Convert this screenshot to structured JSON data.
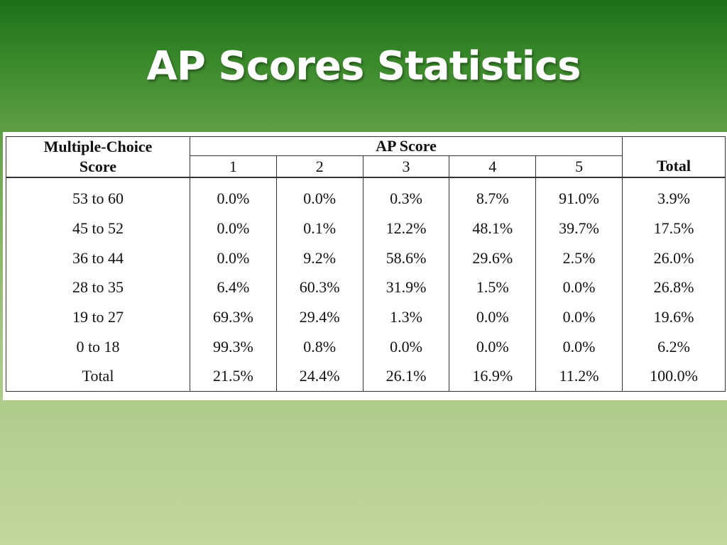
{
  "slide": {
    "title": "AP Scores Statistics"
  },
  "table": {
    "header": {
      "mc_line1": "Multiple-Choice",
      "mc_line2": "Score",
      "ap_score": "AP Score",
      "scores": [
        "1",
        "2",
        "3",
        "4",
        "5"
      ],
      "total": "Total"
    },
    "rows": [
      {
        "range": "53 to 60",
        "values": [
          "0.0%",
          "0.0%",
          "0.3%",
          "8.7%",
          "91.0%"
        ],
        "total": "3.9%"
      },
      {
        "range": "45 to 52",
        "values": [
          "0.0%",
          "0.1%",
          "12.2%",
          "48.1%",
          "39.7%"
        ],
        "total": "17.5%"
      },
      {
        "range": "36 to 44",
        "values": [
          "0.0%",
          "9.2%",
          "58.6%",
          "29.6%",
          "2.5%"
        ],
        "total": "26.0%"
      },
      {
        "range": "28 to 35",
        "values": [
          "6.4%",
          "60.3%",
          "31.9%",
          "1.5%",
          "0.0%"
        ],
        "total": "26.8%"
      },
      {
        "range": "19 to 27",
        "values": [
          "69.3%",
          "29.4%",
          "1.3%",
          "0.0%",
          "0.0%"
        ],
        "total": "19.6%"
      },
      {
        "range": "0 to 18",
        "values": [
          "99.3%",
          "0.8%",
          "0.0%",
          "0.0%",
          "0.0%"
        ],
        "total": "6.2%"
      },
      {
        "range": "Total",
        "values": [
          "21.5%",
          "24.4%",
          "26.1%",
          "16.9%",
          "11.2%"
        ],
        "total": "100.0%"
      }
    ]
  }
}
